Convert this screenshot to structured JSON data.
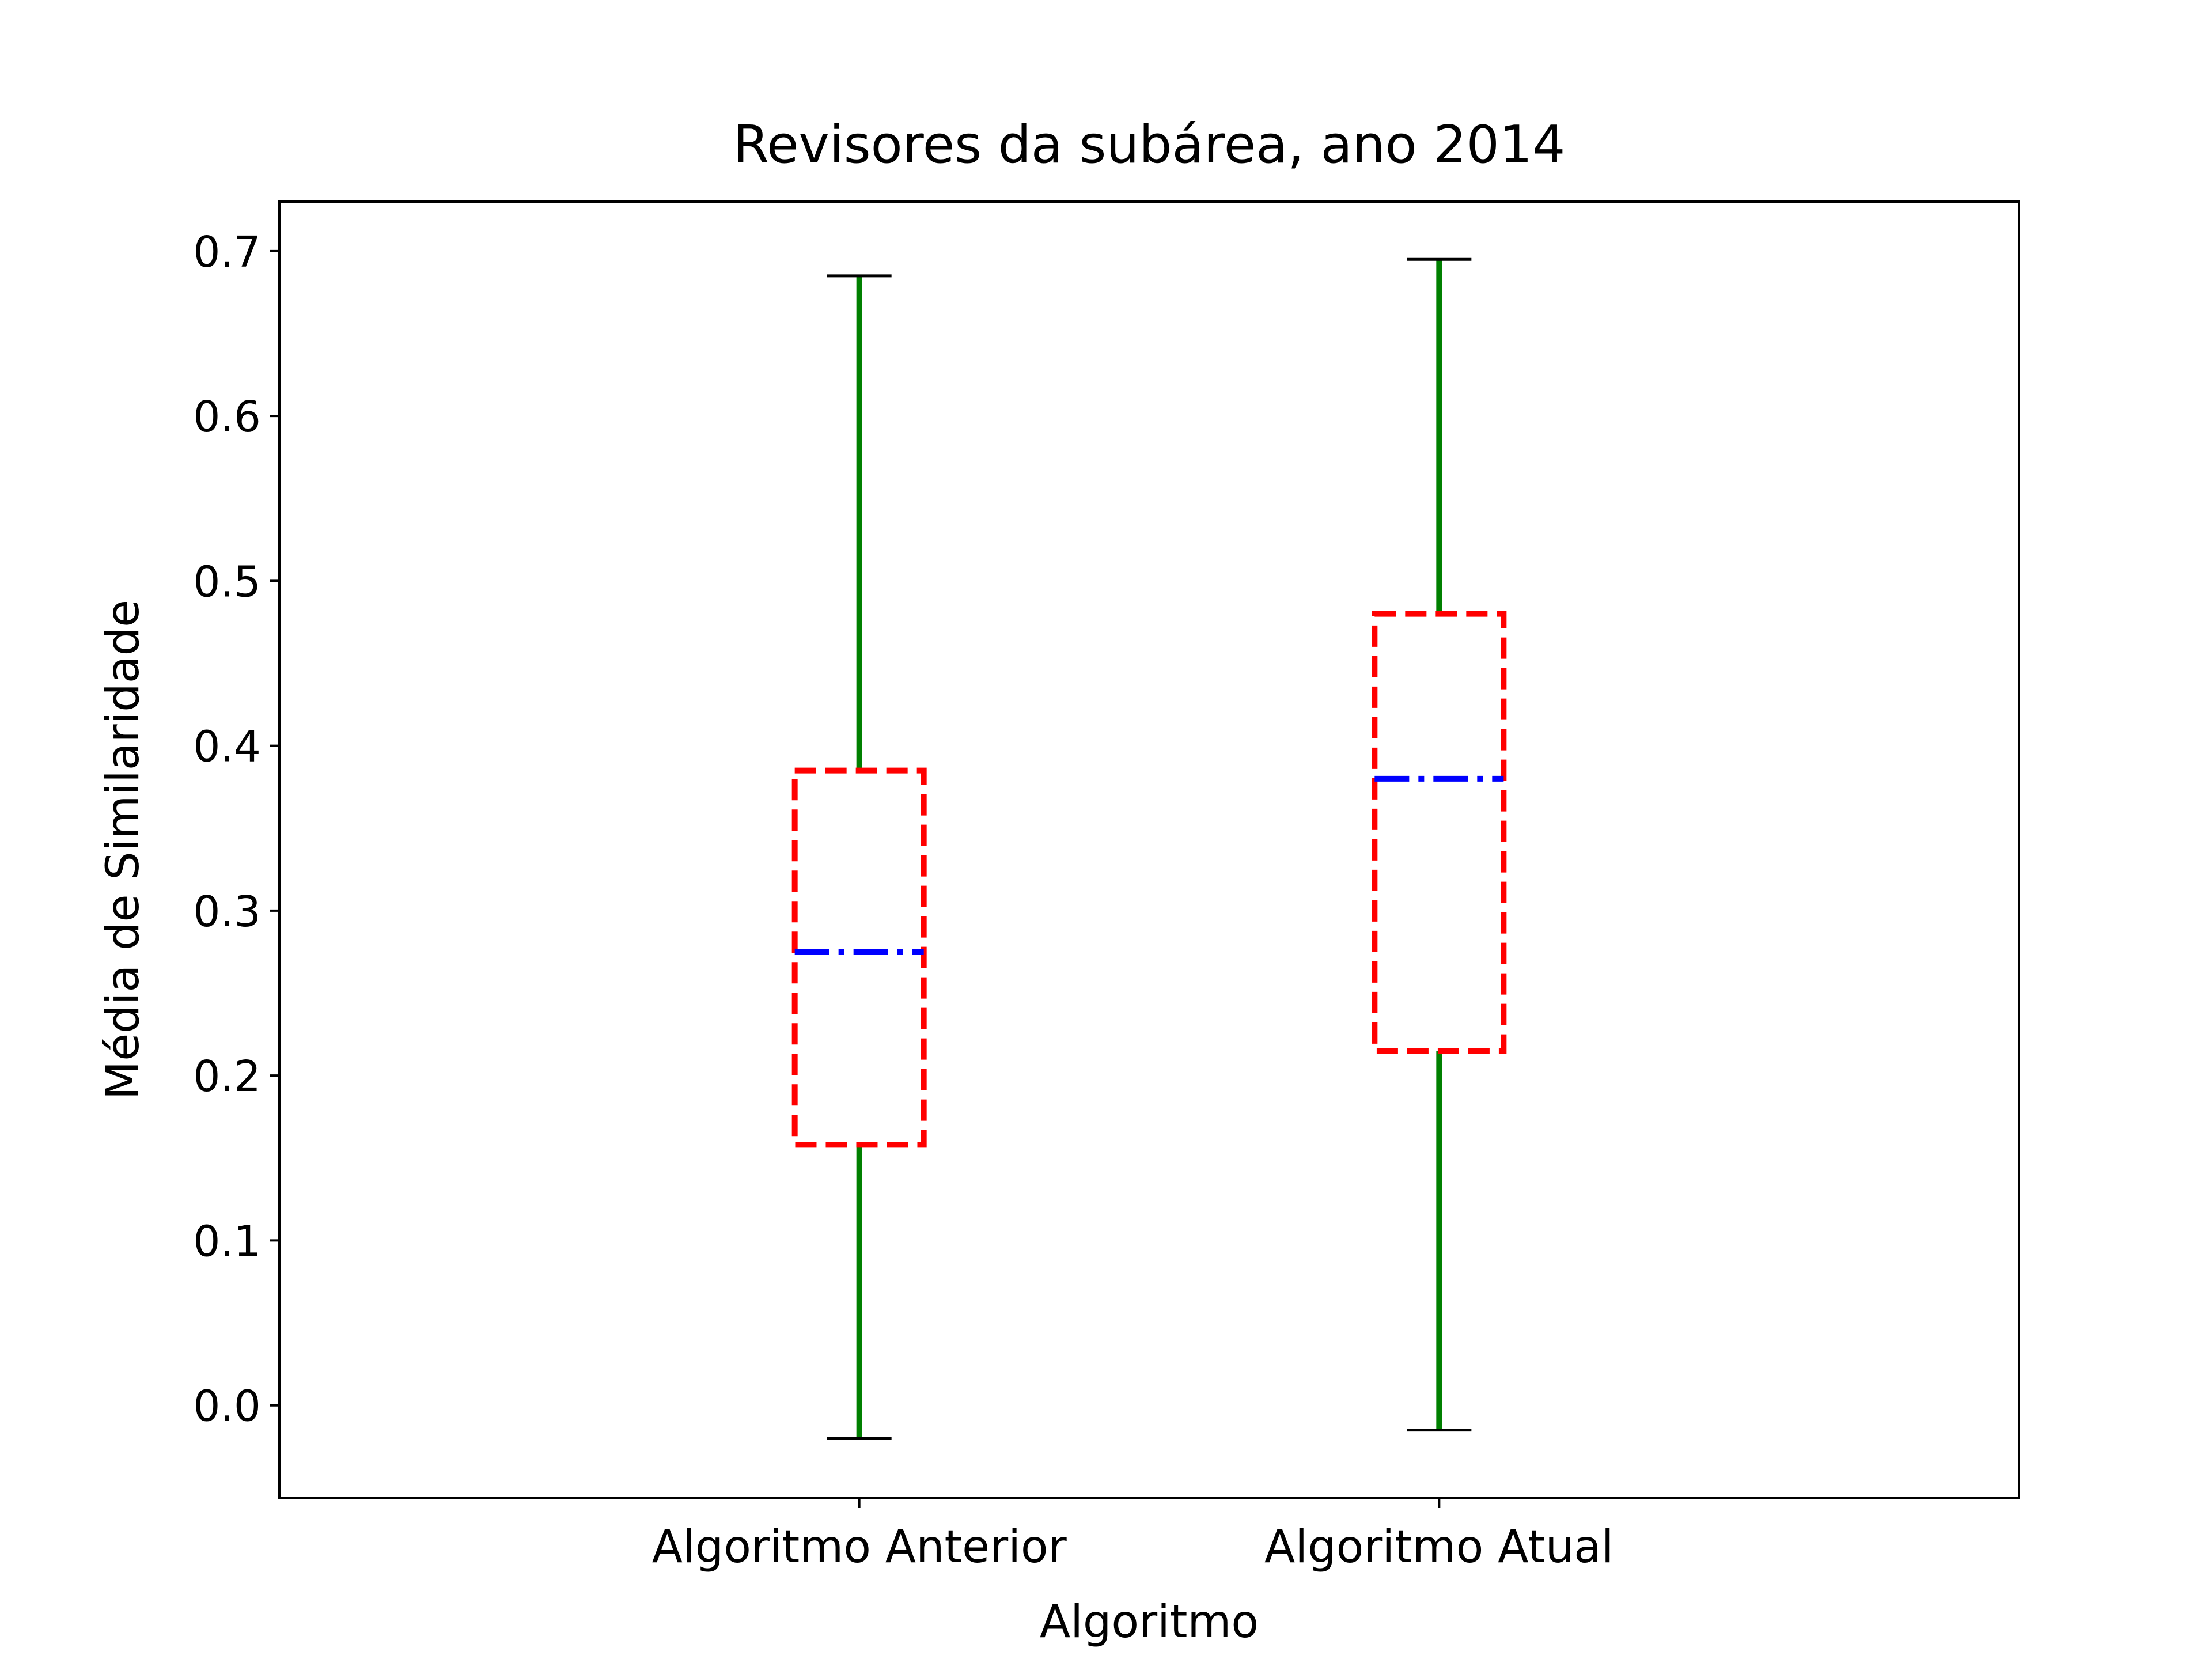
{
  "chart_data": {
    "type": "boxplot",
    "title": "Revisores da subárea, ano 2014",
    "xlabel": "Algoritmo",
    "ylabel": "Média de Similaridade",
    "ylim": [
      -0.056,
      0.73
    ],
    "y_ticks": [
      0.0,
      0.1,
      0.2,
      0.3,
      0.4,
      0.5,
      0.6,
      0.7
    ],
    "y_tick_labels": [
      "0.0",
      "0.1",
      "0.2",
      "0.3",
      "0.4",
      "0.5",
      "0.6",
      "0.7"
    ],
    "categories": [
      "Algoritmo Anterior",
      "Algoritmo Atual"
    ],
    "boxes": [
      {
        "category": "Algoritmo Anterior",
        "whisker_low": -0.02,
        "q1": 0.158,
        "median": 0.275,
        "q3": 0.385,
        "whisker_high": 0.685
      },
      {
        "category": "Algoritmo Atual",
        "whisker_low": -0.015,
        "q1": 0.215,
        "median": 0.38,
        "q3": 0.48,
        "whisker_high": 0.695
      }
    ],
    "grid": false,
    "colors": {
      "box": "#ff0000",
      "whisker": "#008000",
      "median": "#0000ff",
      "cap": "#000000",
      "axes": "#000000",
      "background": "#ffffff"
    }
  }
}
